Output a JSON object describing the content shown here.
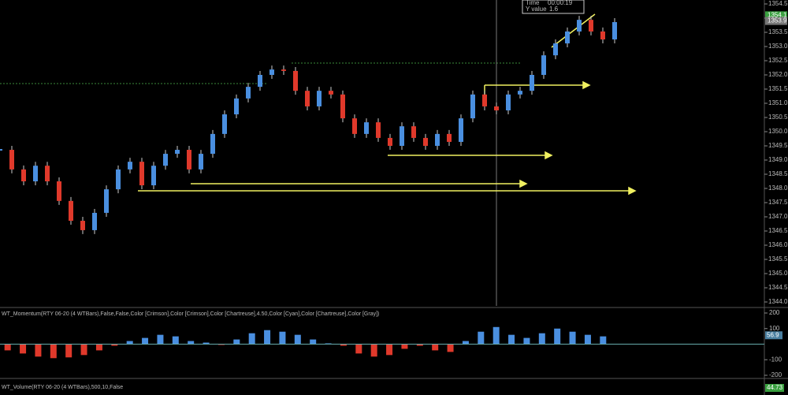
{
  "chart_data": {
    "type": "candlestick",
    "up_color": "#4a8fe0",
    "down_color": "#e0392b",
    "values": [
      1349.36,
      1348.67,
      1348.25,
      1348.8,
      1348.25,
      1347.56,
      1346.86,
      1346.53,
      1347.14,
      1347.97,
      1348.67,
      1348.94,
      1348.11,
      1348.8,
      1349.22,
      1349.36,
      1348.67,
      1349.22,
      1349.92,
      1350.61,
      1351.17,
      1351.58,
      1352.0,
      1352.19,
      1352.14,
      1351.44,
      1350.89,
      1351.44,
      1351.31,
      1350.47,
      1349.92,
      1350.33,
      1349.78,
      1349.5,
      1350.19,
      1349.78,
      1349.5,
      1349.92,
      1349.64,
      1350.47,
      1351.31,
      1350.89,
      1350.75,
      1351.31,
      1351.44,
      1352.0,
      1352.69,
      1353.11,
      1353.53,
      1353.94,
      1353.53,
      1353.25,
      1353.86
    ],
    "ylim": [
      1344.0,
      1354.5
    ],
    "yticks": [
      {
        "value": 1344.0,
        "label": "1344.0"
      },
      {
        "value": 1344.5,
        "label": "1344.5"
      },
      {
        "value": 1345.0,
        "label": "1345.0"
      },
      {
        "value": 1345.5,
        "label": "1345.5"
      },
      {
        "value": 1346.0,
        "label": "1346.0"
      },
      {
        "value": 1346.5,
        "label": "1346.5"
      },
      {
        "value": 1347.0,
        "label": "1347.0"
      },
      {
        "value": 1347.5,
        "label": "1347.5"
      },
      {
        "value": 1348.0,
        "label": "1348.0"
      },
      {
        "value": 1348.5,
        "label": "1348.5"
      },
      {
        "value": 1349.0,
        "label": "1349.0"
      },
      {
        "value": 1349.5,
        "label": "1349.5"
      },
      {
        "value": 1350.0,
        "label": "1350.0"
      },
      {
        "value": 1350.5,
        "label": "1350.5"
      },
      {
        "value": 1351.0,
        "label": "1351.0"
      },
      {
        "value": 1351.5,
        "label": "1351.5"
      },
      {
        "value": 1352.0,
        "label": "1352.0"
      },
      {
        "value": 1352.5,
        "label": "1352.5"
      },
      {
        "value": 1353.0,
        "label": "1353.0"
      },
      {
        "value": 1353.5,
        "label": "1353.5"
      },
      {
        "value": 1354.0,
        "label": "1354.0"
      },
      {
        "value": 1354.5,
        "label": "1354.5"
      }
    ],
    "price_labels": [
      {
        "value": 1354.1,
        "label": "1354.1",
        "color": "#3aa040"
      },
      {
        "value": 1353.9,
        "label": "1353.9",
        "color": "#777777"
      }
    ],
    "crosshair": {
      "time_label": "Time",
      "time": "00:00:19",
      "y_label": "Y value",
      "y_value": {
        "value": 1.6,
        "label": "1.6"
      }
    },
    "momentum": {
      "title": "WT_Momentum(RTY 06-20 (4 WTBars),False,False,Color [Crimson],Color [Crimson],Color [Chartreuse],4.50,Color [Cyan],Color [Chartreuse],Color [Gray])",
      "values": [
        -40,
        -60,
        -80,
        -90,
        -85,
        -70,
        -40,
        -10,
        20,
        40,
        60,
        50,
        20,
        10,
        -5,
        30,
        70,
        90,
        80,
        60,
        30,
        5,
        -10,
        -60,
        -80,
        -70,
        -30,
        -10,
        -40,
        -50,
        20,
        80,
        110,
        60,
        40,
        70,
        100,
        80,
        60,
        50
      ],
      "up_color": "#4a8fe0",
      "down_color": "#e0392b",
      "ylim": [
        -200,
        200
      ],
      "yticks": [
        200,
        100,
        -100,
        -200
      ],
      "current": 56.9
    },
    "volume": {
      "title": "WT_Volume(RTY 06-20 (4 WTBars),500,10,False",
      "current": 44.73
    }
  }
}
